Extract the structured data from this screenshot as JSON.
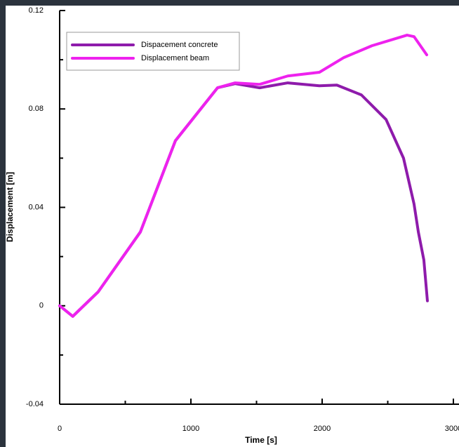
{
  "chart_data": {
    "type": "line",
    "x_label": "Time [s]",
    "y_label": "Displacement [m]",
    "xlim": [
      0,
      3000
    ],
    "xticks": [
      0,
      1000,
      2000,
      3000
    ],
    "xminorticks": [
      500,
      1500,
      2500
    ],
    "ylim": [
      -0.04,
      0.12
    ],
    "yticks": [
      {
        "value": -0.04,
        "label": "-0.04"
      },
      0,
      {
        "value": 0.04,
        "label": "0.04"
      },
      {
        "value": 0.08,
        "label": "0.08"
      },
      {
        "value": 0.12,
        "label": "0.12"
      }
    ],
    "yminorticks": [
      -0.02,
      0.02,
      0.06,
      0.1
    ],
    "legend": "upper left",
    "series": [
      {
        "name": "Dispacement concrete",
        "color": "#8e1bab",
        "x": [
          0,
          100,
          294,
          615,
          882,
          1203,
          1337,
          1524,
          1738,
          1979,
          2112,
          2299,
          2487,
          2620,
          2700,
          2733,
          2775,
          2802
        ],
        "values": [
          0,
          -0.0043,
          0.0057,
          0.03,
          0.0671,
          0.0886,
          0.0903,
          0.0886,
          0.0906,
          0.0894,
          0.0897,
          0.0857,
          0.0757,
          0.06,
          0.0414,
          0.03,
          0.0186,
          0.002
        ]
      },
      {
        "name": "Displacement beam",
        "color": "#ee22ee",
        "x": [
          0,
          100,
          294,
          615,
          882,
          1203,
          1337,
          1524,
          1738,
          1979,
          2166,
          2380,
          2647,
          2700,
          2797
        ],
        "values": [
          0,
          -0.0043,
          0.0057,
          0.03,
          0.0671,
          0.0886,
          0.0906,
          0.09,
          0.0934,
          0.0949,
          0.1009,
          0.1057,
          0.11,
          0.1094,
          0.102
        ]
      }
    ]
  }
}
